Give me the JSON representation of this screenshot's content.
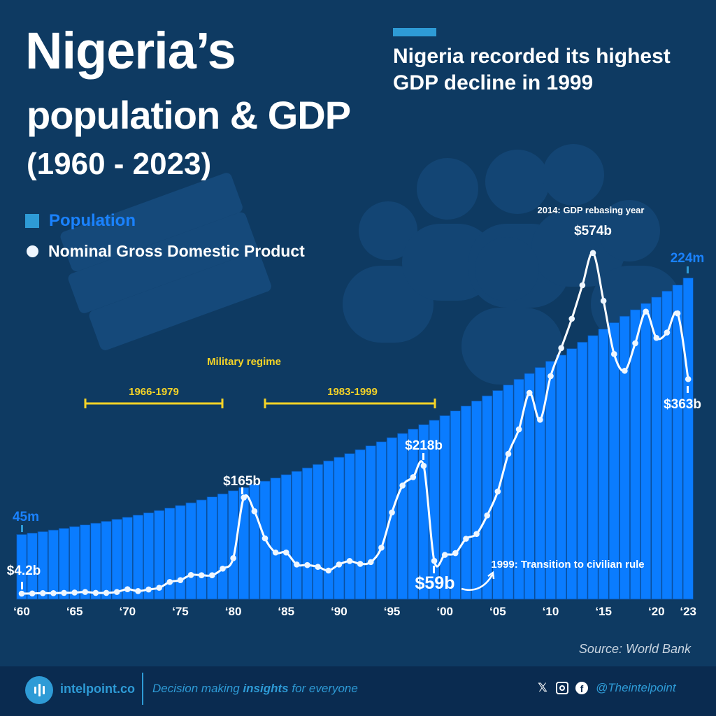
{
  "title": {
    "line1": "Nigeria’s",
    "line2": "population & GDP",
    "line3": "(1960 - 2023)"
  },
  "headline": "Nigeria recorded its highest GDP decline in 1999",
  "legend": {
    "population": "Population",
    "gdp": "Nominal Gross Domestic Product"
  },
  "colors": {
    "background": "#0e3a62",
    "bars": "#0a7cff",
    "gdp_line": "#ffffff",
    "accent": "#2e9bd6",
    "military": "#f5d327",
    "population_label": "#1a82ff"
  },
  "annotations": {
    "rebasing": "2014: GDP rebasing year",
    "peak_2014": "$574b",
    "pop_2023": "224m",
    "gdp_2023": "$363b",
    "gdp_1998": "$218b",
    "gdp_1981": "$165b",
    "gdp_1999": "$59b",
    "civilian": "1999: Transition to civilian rule",
    "pop_1960": "45m",
    "gdp_1960": "$4.2b",
    "military_title": "Military regime",
    "military_1": "1966-1979",
    "military_2": "1983-1999"
  },
  "source": "Source: World Bank",
  "footer": {
    "brand": "intelpoint.co",
    "tagline_pre": "Decision making ",
    "tagline_bold": "insights",
    "tagline_post": " for everyone",
    "handle": "@Theintelpoint",
    "icons": [
      "x-icon",
      "instagram-icon",
      "facebook-icon"
    ]
  },
  "chart_data": {
    "type": "bar+line",
    "x": [
      1960,
      1961,
      1962,
      1963,
      1964,
      1965,
      1966,
      1967,
      1968,
      1969,
      1970,
      1971,
      1972,
      1973,
      1974,
      1975,
      1976,
      1977,
      1978,
      1979,
      1980,
      1981,
      1982,
      1983,
      1984,
      1985,
      1986,
      1987,
      1988,
      1989,
      1990,
      1991,
      1992,
      1993,
      1994,
      1995,
      1996,
      1997,
      1998,
      1999,
      2000,
      2001,
      2002,
      2003,
      2004,
      2005,
      2006,
      2007,
      2008,
      2009,
      2010,
      2011,
      2012,
      2013,
      2014,
      2015,
      2016,
      2017,
      2018,
      2019,
      2020,
      2021,
      2022,
      2023
    ],
    "tick_labels": [
      "‘60",
      "‘65",
      "‘70",
      "‘75",
      "‘80",
      "‘85",
      "‘90",
      "‘95",
      "‘00",
      "‘05",
      "‘10",
      "‘15",
      "‘20",
      "‘23"
    ],
    "tick_years": [
      1960,
      1965,
      1970,
      1975,
      1980,
      1985,
      1990,
      1995,
      2000,
      2005,
      2010,
      2015,
      2020,
      2023
    ],
    "series": [
      {
        "name": "Population",
        "type": "bar",
        "unit": "million",
        "values": [
          45.1,
          46.1,
          47.1,
          48.2,
          49.4,
          50.6,
          51.8,
          53.0,
          54.3,
          55.7,
          57.1,
          58.6,
          60.2,
          61.8,
          63.5,
          65.3,
          67.2,
          69.2,
          71.3,
          73.4,
          75.6,
          77.8,
          80.0,
          82.3,
          84.5,
          86.8,
          89.1,
          91.5,
          93.9,
          96.4,
          98.9,
          101.5,
          104.2,
          106.9,
          109.7,
          112.6,
          115.5,
          118.5,
          121.6,
          124.7,
          127.9,
          131.2,
          134.6,
          138.1,
          141.7,
          145.4,
          149.3,
          153.3,
          157.3,
          161.5,
          165.8,
          170.1,
          174.6,
          179.1,
          183.7,
          188.2,
          192.7,
          197.2,
          201.7,
          206.1,
          210.5,
          214.7,
          218.9,
          223.8
        ]
      },
      {
        "name": "Nominal Gross Domestic Product",
        "type": "line",
        "unit": "billion USD",
        "values": [
          4.2,
          4.5,
          5,
          5,
          5.5,
          6,
          7,
          5.5,
          5.5,
          7,
          11.6,
          8.5,
          11.2,
          14,
          23.7,
          26.8,
          35.4,
          35,
          35,
          46,
          63.5,
          165,
          142,
          96.6,
          73,
          73,
          53,
          52,
          49,
          42.8,
          53,
          58.8,
          54,
          57,
          81,
          140,
          185,
          199,
          218,
          59,
          69,
          72,
          96,
          104,
          135,
          175,
          238,
          279,
          340,
          295,
          368,
          415,
          464,
          520,
          574,
          494,
          405,
          377,
          423,
          476,
          432,
          441,
          473,
          363
        ]
      }
    ],
    "military_periods": [
      [
        1966,
        1979
      ],
      [
        1983,
        1999
      ]
    ]
  }
}
